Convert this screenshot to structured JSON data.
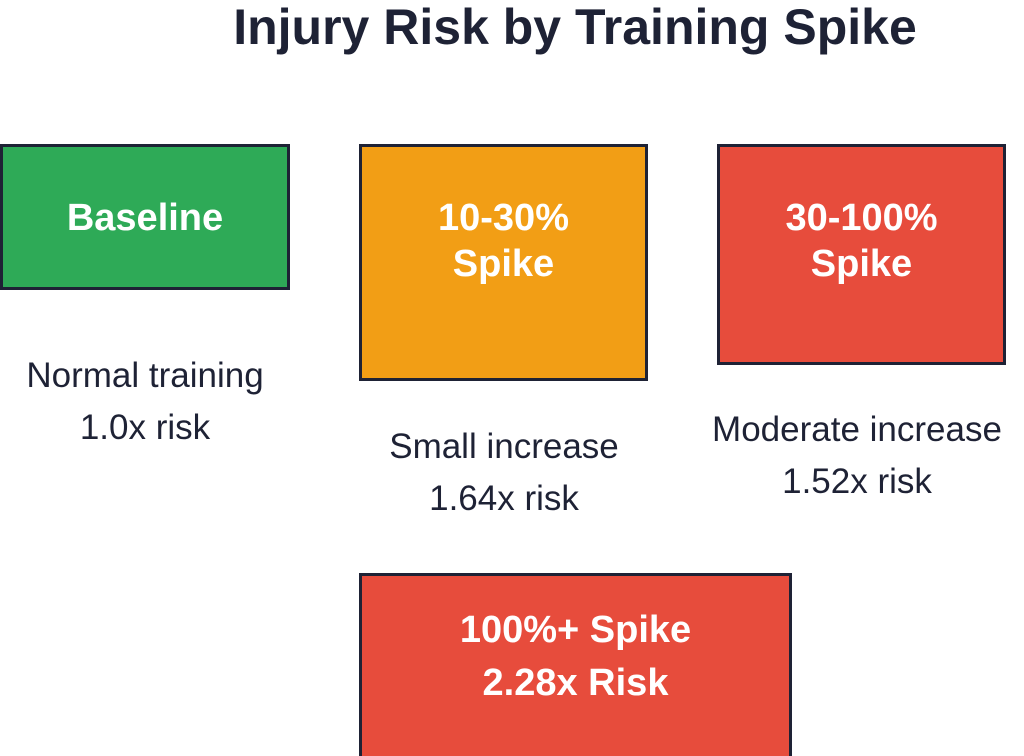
{
  "title": "Injury Risk by Training Spike",
  "colors": {
    "green": "#2eaa57",
    "orange": "#f29e15",
    "red": "#e74c3c",
    "border": "#1e2235"
  },
  "nodes": [
    {
      "id": "baseline",
      "label_lines": [
        "Baseline"
      ],
      "color": "#2eaa57",
      "caption_lines": [
        "Normal training",
        "1.0x risk"
      ]
    },
    {
      "id": "small",
      "label_lines": [
        "10-30%",
        "Spike"
      ],
      "color": "#f29e15",
      "caption_lines": [
        "Small increase",
        "1.64x risk"
      ]
    },
    {
      "id": "moderate",
      "label_lines": [
        "30-100%",
        "Spike"
      ],
      "color": "#e74c3c",
      "caption_lines": [
        "Moderate increase",
        "1.52x risk"
      ]
    },
    {
      "id": "extreme",
      "label_lines": [
        "100%+ Spike",
        "2.28x Risk"
      ],
      "color": "#e74c3c",
      "caption_lines": []
    }
  ]
}
